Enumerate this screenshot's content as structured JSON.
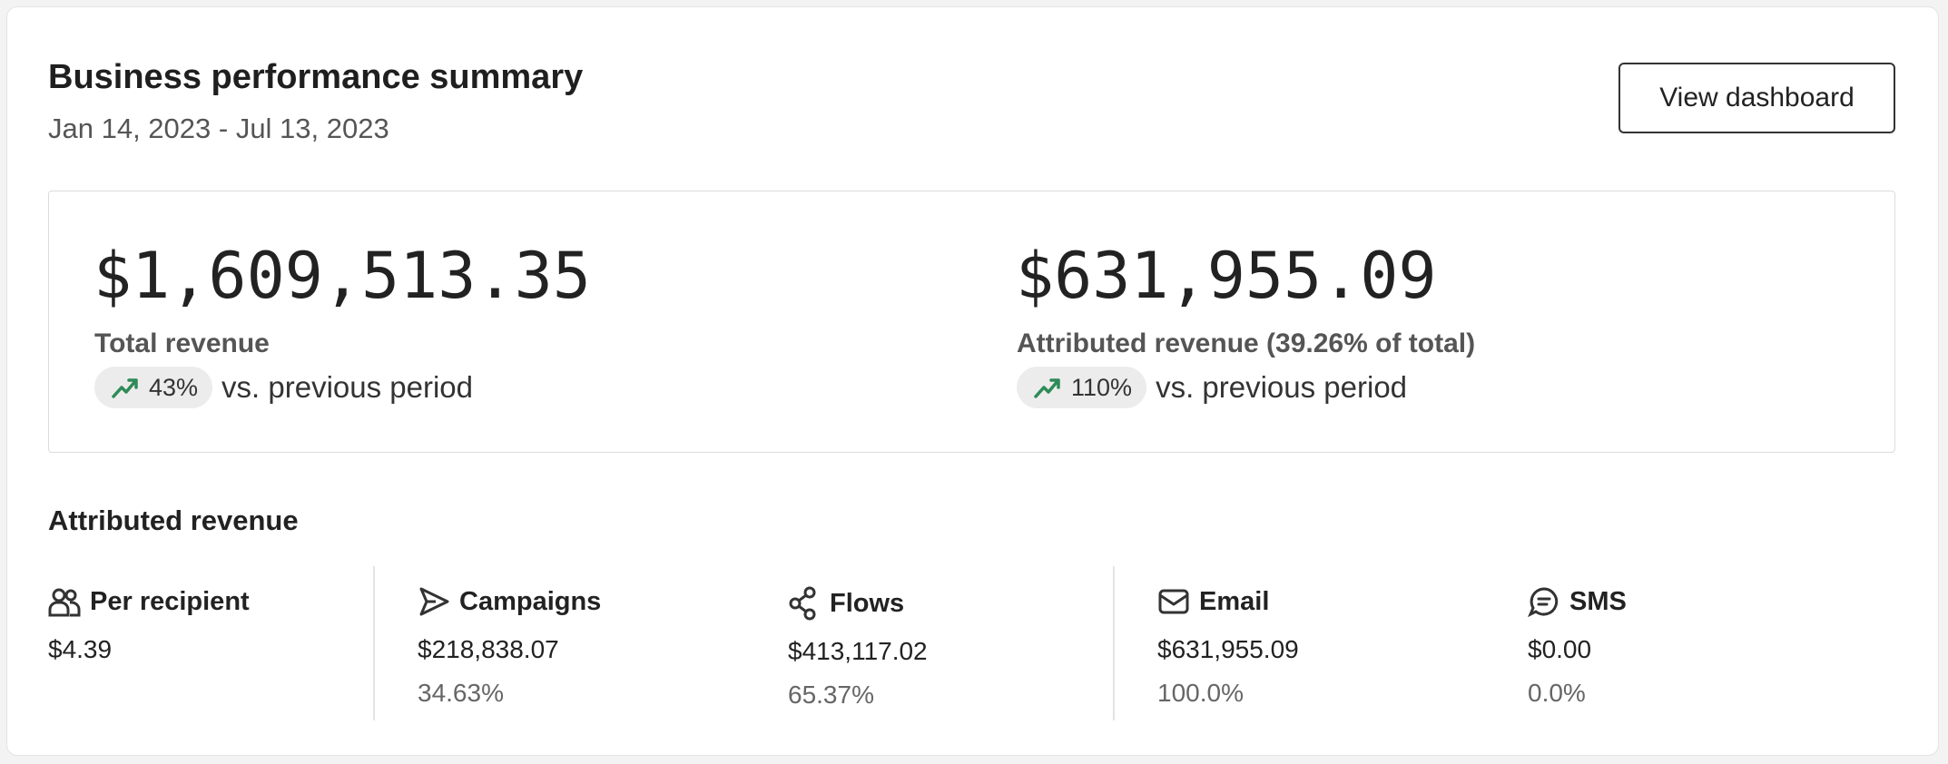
{
  "header": {
    "title": "Business performance summary",
    "date_range": "Jan 14, 2023 - Jul 13, 2023"
  },
  "button": "View dashboard",
  "summary": [
    {
      "value": "$1,609,513.35",
      "label": "Total revenue",
      "change": "43%",
      "change_suffix": "vs. previous period"
    },
    {
      "value": "$631,955.09",
      "label": "Attributed revenue (39.26% of total)",
      "change": "110%",
      "change_suffix": "vs. previous period"
    }
  ],
  "section_title": "Attributed revenue",
  "metrics": [
    {
      "label": "Per recipient",
      "value": "$4.39"
    },
    {
      "label": "Campaigns",
      "value": "$218,838.07",
      "share": "34.63%"
    },
    {
      "label": "Flows",
      "value": "$413,117.02",
      "share": "65.37%"
    },
    {
      "label": "Email",
      "value": "$631,955.09",
      "share": "100.0%"
    },
    {
      "label": "SMS",
      "value": "$0.00",
      "share": "0.0%"
    }
  ]
}
